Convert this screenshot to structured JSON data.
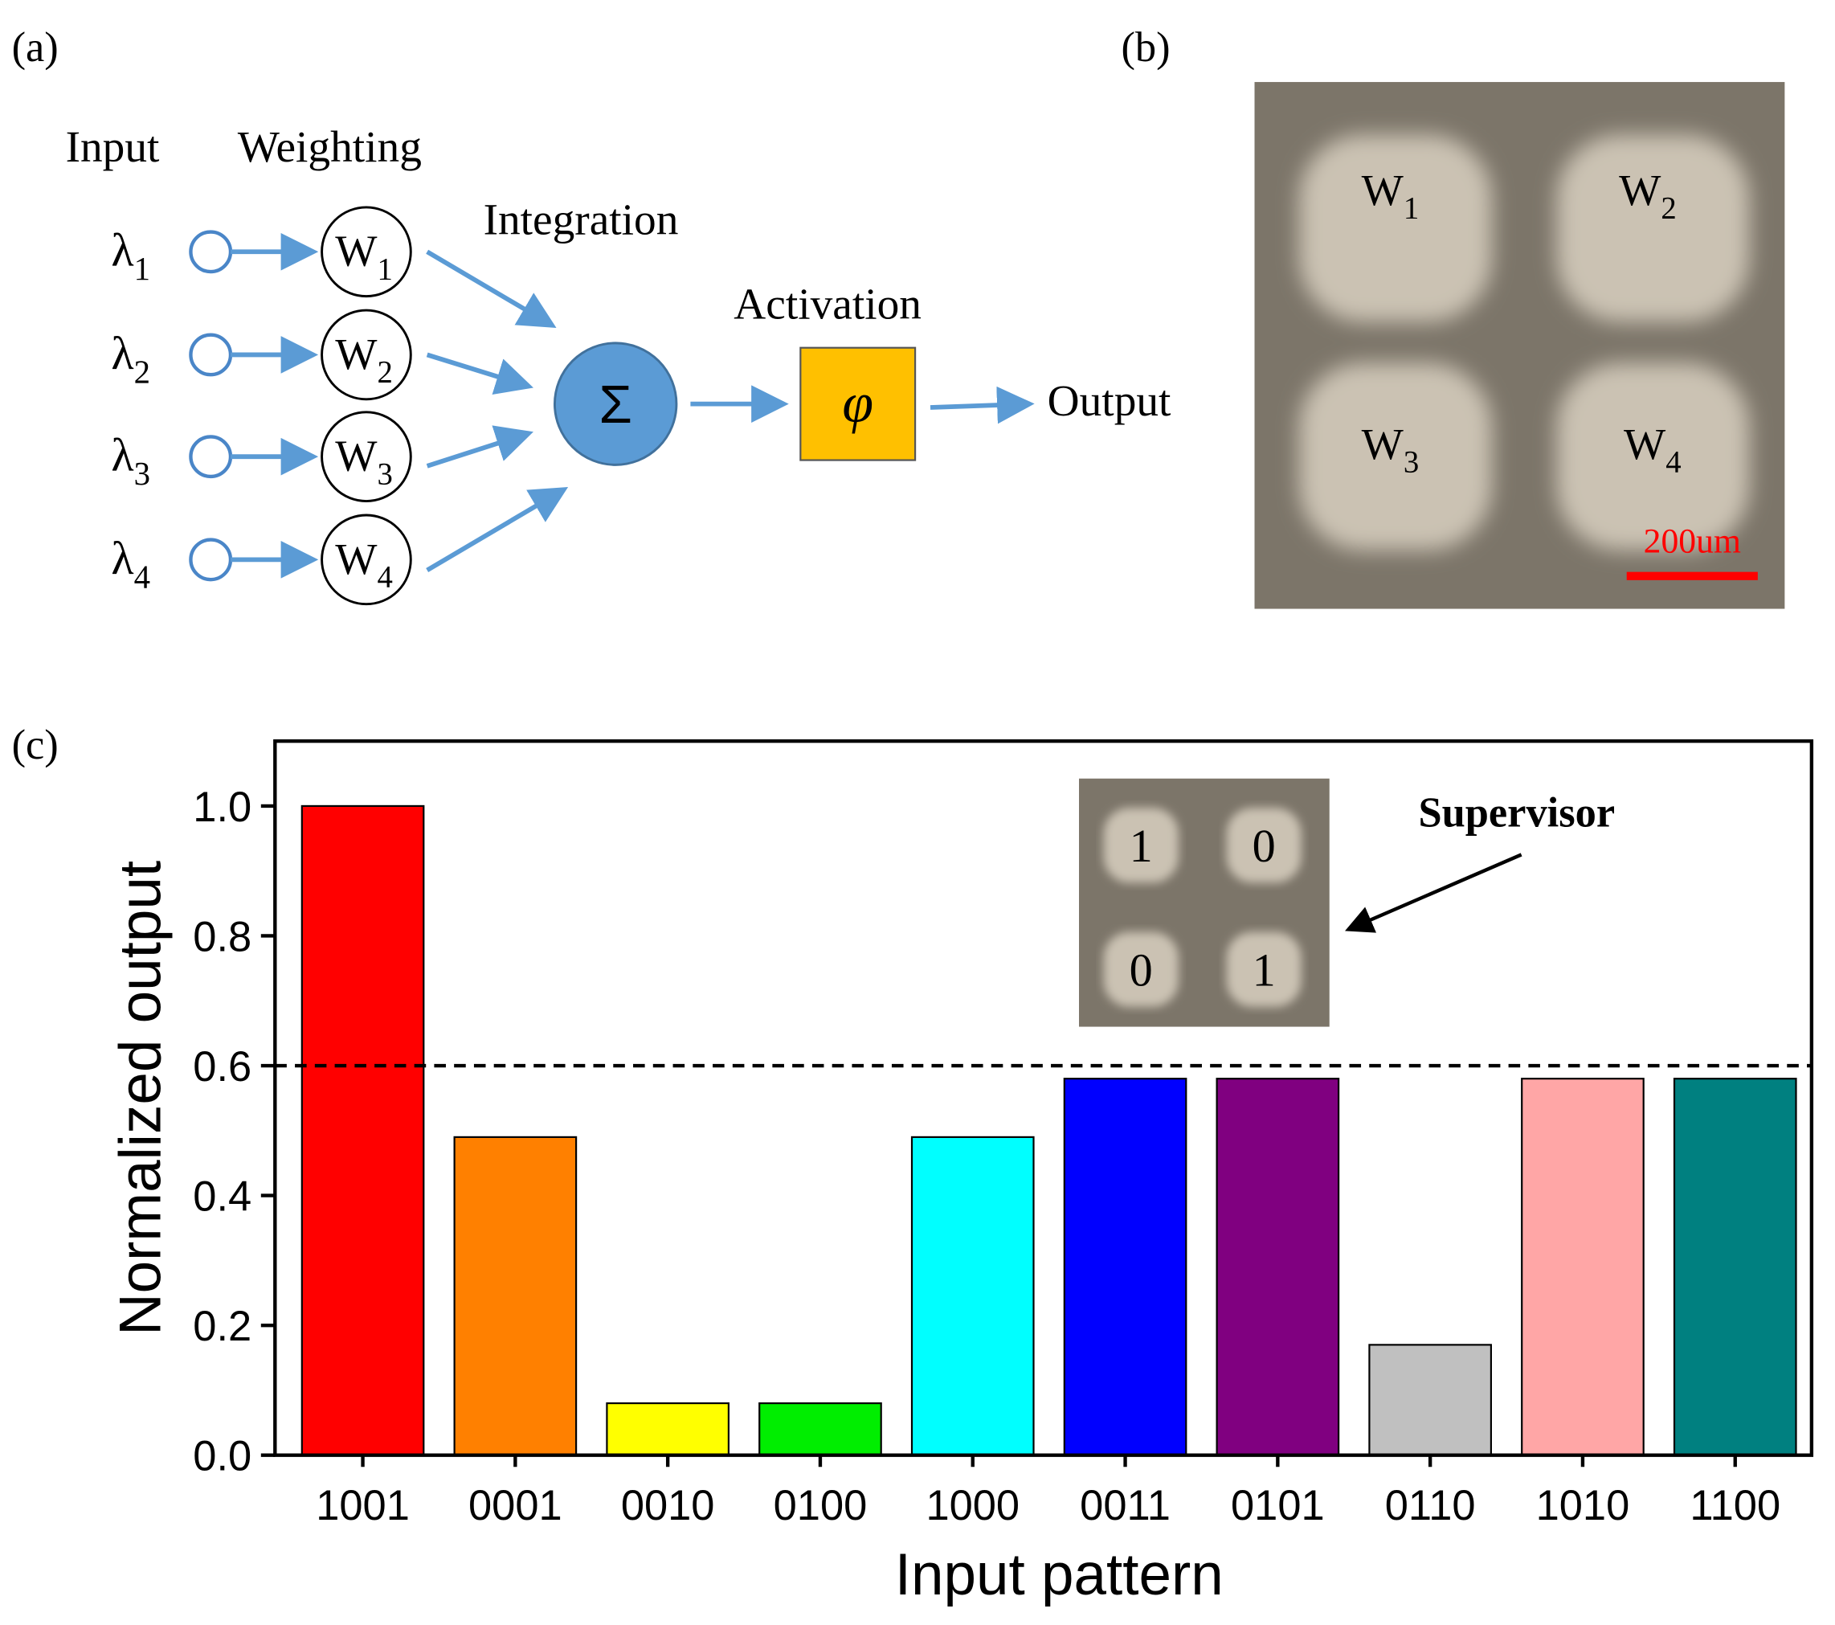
{
  "diagram": {
    "panel_a": "(a)",
    "panel_b": "(b)",
    "panel_c": "(c)",
    "input": "Input",
    "weighting": "Weighting",
    "integration": "Integration",
    "activation": "Activation",
    "output": "Output",
    "inputs": [
      {
        "base": "λ",
        "sub": "1"
      },
      {
        "base": "λ",
        "sub": "2"
      },
      {
        "base": "λ",
        "sub": "3"
      },
      {
        "base": "λ",
        "sub": "4"
      }
    ],
    "weights": [
      {
        "base": "W",
        "sub": "1"
      },
      {
        "base": "W",
        "sub": "2"
      },
      {
        "base": "W",
        "sub": "3"
      },
      {
        "base": "W",
        "sub": "4"
      }
    ],
    "sum": "Σ",
    "phi": "φ",
    "photo_labels": [
      {
        "base": "W",
        "sub": "1"
      },
      {
        "base": "W",
        "sub": "2"
      },
      {
        "base": "W",
        "sub": "3"
      },
      {
        "base": "W",
        "sub": "4"
      }
    ],
    "scale_bar": "200um"
  },
  "chart_data": {
    "type": "bar",
    "xlabel": "Input pattern",
    "ylabel": "Normalized output",
    "categories": [
      "1001",
      "0001",
      "0010",
      "0100",
      "1000",
      "0011",
      "0101",
      "0110",
      "1010",
      "1100"
    ],
    "values": [
      1.0,
      0.49,
      0.08,
      0.08,
      0.49,
      0.58,
      0.58,
      0.17,
      0.58,
      0.58
    ],
    "colors": [
      "#ff0000",
      "#ff8000",
      "#ffff00",
      "#00ee00",
      "#00ffff",
      "#0000ff",
      "#800080",
      "#c0c0c0",
      "#ffa6a6",
      "#008080"
    ],
    "ylim": [
      0,
      1.1
    ],
    "yticks": [
      {
        "value": 0,
        "label": "0.0"
      },
      0.2,
      0.4,
      0.6,
      0.8,
      {
        "value": 1,
        "label": "1.0"
      }
    ],
    "threshold": 0.6,
    "inset_labels": [
      "1",
      "0",
      "0",
      "1"
    ],
    "annotation": "Supervisor"
  }
}
